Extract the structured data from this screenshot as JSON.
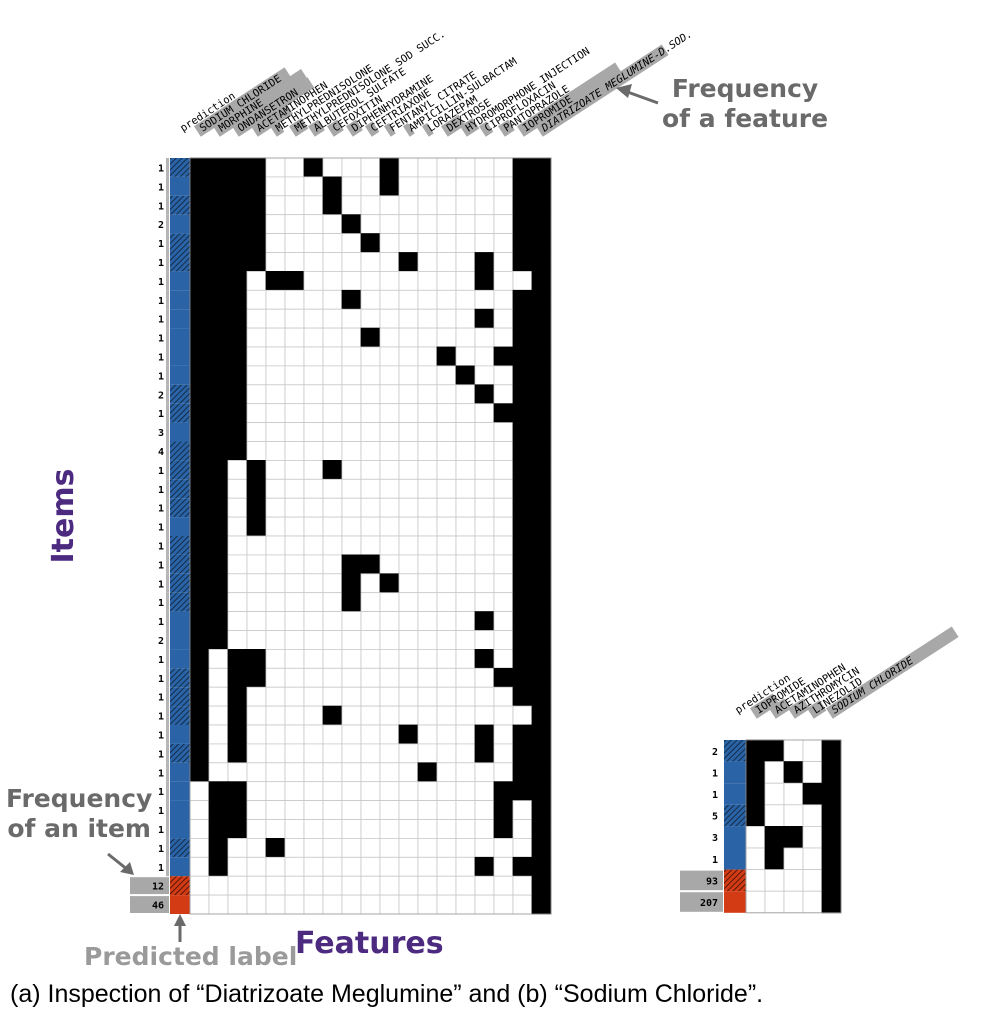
{
  "annotations": {
    "feature_freq": [
      "Frequency",
      "of a feature"
    ],
    "item_freq": [
      "Frequency",
      "of an item"
    ],
    "predicted_label": "Predicted label",
    "items_axis": "Items",
    "features_axis": "Features"
  },
  "caption": "(a)  Inspection of “Diatrizoate Meglumine” and (b) “Sodium Chloride”.",
  "colors": {
    "blue": "#2a64a6",
    "red": "#d23b14",
    "axis_purple": "#4b2a80",
    "gray": "#a8a8a8",
    "filled": "#000000"
  },
  "chart_data": [
    {
      "type": "heatmap",
      "panel": "a",
      "prediction_header": "prediction",
      "columns": [
        "SODIUM CHLORIDE",
        "MORPHINE",
        "ONDANSETRON",
        "ACETAMINOPHEN",
        "METHYLPREDNISOLONE",
        "METHYLPREDNISOLONE SOD SUCC.",
        "ALBUTEROL SULFATE",
        "CEFOXITIN",
        "DIPHENHYDRAMINE",
        "CEFTRIAXONE",
        "FENTANYL CITRATE",
        "AMPICILLIN-SULBACTAM",
        "LORAZEPAM",
        "DEXTROSE",
        "HYDROMORPHONE INJECTION",
        "CIPROFLOXACIN",
        "PANTOPRAZOLE",
        "IOPROMIDE",
        "DIATRIZOATE MEGLUMINE-D.SOD."
      ],
      "column_frequency": [
        0.72,
        0.7,
        0.6,
        0.28,
        0.06,
        0.1,
        0.08,
        0.08,
        0.08,
        0.06,
        0.04,
        0.04,
        0.04,
        0.14,
        0.1,
        0.06,
        0.08,
        0.78,
        1.0
      ],
      "rows": [
        {
          "freq": "1",
          "pred": "b",
          "hatch": true,
          "cells": "1111001000100000011"
        },
        {
          "freq": "1",
          "pred": "b",
          "hatch": false,
          "cells": "1111000100100000011"
        },
        {
          "freq": "1",
          "pred": "b",
          "hatch": true,
          "cells": "1111000100000000011"
        },
        {
          "freq": "2",
          "pred": "b",
          "hatch": false,
          "cells": "1111000010000000011"
        },
        {
          "freq": "1",
          "pred": "b",
          "hatch": true,
          "cells": "1111000001000000011"
        },
        {
          "freq": "1",
          "pred": "b",
          "hatch": true,
          "cells": "1111000000010001011"
        },
        {
          "freq": "1",
          "pred": "b",
          "hatch": false,
          "cells": "1110110000000001001"
        },
        {
          "freq": "1",
          "pred": "b",
          "hatch": false,
          "cells": "1110000010000000011"
        },
        {
          "freq": "1",
          "pred": "b",
          "hatch": false,
          "cells": "1110000000000001011"
        },
        {
          "freq": "1",
          "pred": "b",
          "hatch": false,
          "cells": "1110000001000000011"
        },
        {
          "freq": "1",
          "pred": "b",
          "hatch": false,
          "cells": "1110000000000100111"
        },
        {
          "freq": "1",
          "pred": "b",
          "hatch": false,
          "cells": "1110000000000010011"
        },
        {
          "freq": "2",
          "pred": "b",
          "hatch": true,
          "cells": "1110000000000001011"
        },
        {
          "freq": "1",
          "pred": "b",
          "hatch": true,
          "cells": "1110000000000000111"
        },
        {
          "freq": "3",
          "pred": "b",
          "hatch": false,
          "cells": "1110000000000000011"
        },
        {
          "freq": "4",
          "pred": "b",
          "hatch": true,
          "cells": "1110000000000000011"
        },
        {
          "freq": "1",
          "pred": "b",
          "hatch": true,
          "cells": "1101000100000000011"
        },
        {
          "freq": "1",
          "pred": "b",
          "hatch": true,
          "cells": "1101000000000000011"
        },
        {
          "freq": "1",
          "pred": "b",
          "hatch": true,
          "cells": "1101000000000000011"
        },
        {
          "freq": "1",
          "pred": "b",
          "hatch": false,
          "cells": "1101000000000000011"
        },
        {
          "freq": "1",
          "pred": "b",
          "hatch": true,
          "cells": "1100000000000000011"
        },
        {
          "freq": "1",
          "pred": "b",
          "hatch": true,
          "cells": "1100000011000000011"
        },
        {
          "freq": "1",
          "pred": "b",
          "hatch": true,
          "cells": "1100000010100000011"
        },
        {
          "freq": "1",
          "pred": "b",
          "hatch": true,
          "cells": "1100000010000000011"
        },
        {
          "freq": "1",
          "pred": "b",
          "hatch": false,
          "cells": "1100000000000001011"
        },
        {
          "freq": "2",
          "pred": "b",
          "hatch": false,
          "cells": "1100000000000000011"
        },
        {
          "freq": "1",
          "pred": "b",
          "hatch": false,
          "cells": "1011000000000001011"
        },
        {
          "freq": "1",
          "pred": "b",
          "hatch": true,
          "cells": "1011000000000000111"
        },
        {
          "freq": "1",
          "pred": "b",
          "hatch": true,
          "cells": "1010000000000000011"
        },
        {
          "freq": "1",
          "pred": "b",
          "hatch": true,
          "cells": "1010000100000000001"
        },
        {
          "freq": "1",
          "pred": "b",
          "hatch": false,
          "cells": "1010000000010001011"
        },
        {
          "freq": "1",
          "pred": "b",
          "hatch": true,
          "cells": "1010000000000001011"
        },
        {
          "freq": "1",
          "pred": "b",
          "hatch": false,
          "cells": "1000000000001000011"
        },
        {
          "freq": "1",
          "pred": "b",
          "hatch": false,
          "cells": "0110000000000000111"
        },
        {
          "freq": "1",
          "pred": "b",
          "hatch": false,
          "cells": "0110000000000000101"
        },
        {
          "freq": "1",
          "pred": "b",
          "hatch": false,
          "cells": "0110000000000000101"
        },
        {
          "freq": "1",
          "pred": "b",
          "hatch": true,
          "cells": "0100100000000000001"
        },
        {
          "freq": "1",
          "pred": "b",
          "hatch": false,
          "cells": "0100000000000001011"
        },
        {
          "freq": "12",
          "pred": "r",
          "hatch": true,
          "cells": "0000000000000000001"
        },
        {
          "freq": "46",
          "pred": "r",
          "hatch": false,
          "cells": "0000000000000000001"
        }
      ]
    },
    {
      "type": "heatmap",
      "panel": "b",
      "prediction_header": "prediction",
      "columns": [
        "IOPROMIDE",
        "ACETAMINOPHEN",
        "AZITHROMYCIN",
        "LINEZOLID",
        "SODIUM CHLORIDE"
      ],
      "column_frequency": [
        0.18,
        0.12,
        0.12,
        0.1,
        1.0
      ],
      "rows": [
        {
          "freq": "2",
          "pred": "b",
          "hatch": true,
          "cells": "11001"
        },
        {
          "freq": "1",
          "pred": "b",
          "hatch": false,
          "cells": "10101"
        },
        {
          "freq": "1",
          "pred": "b",
          "hatch": false,
          "cells": "10011"
        },
        {
          "freq": "5",
          "pred": "b",
          "hatch": true,
          "cells": "10001"
        },
        {
          "freq": "3",
          "pred": "b",
          "hatch": false,
          "cells": "01101"
        },
        {
          "freq": "1",
          "pred": "b",
          "hatch": false,
          "cells": "01001"
        },
        {
          "freq": "93",
          "pred": "r",
          "hatch": true,
          "cells": "00001"
        },
        {
          "freq": "207",
          "pred": "r",
          "hatch": false,
          "cells": "00001"
        }
      ]
    }
  ]
}
